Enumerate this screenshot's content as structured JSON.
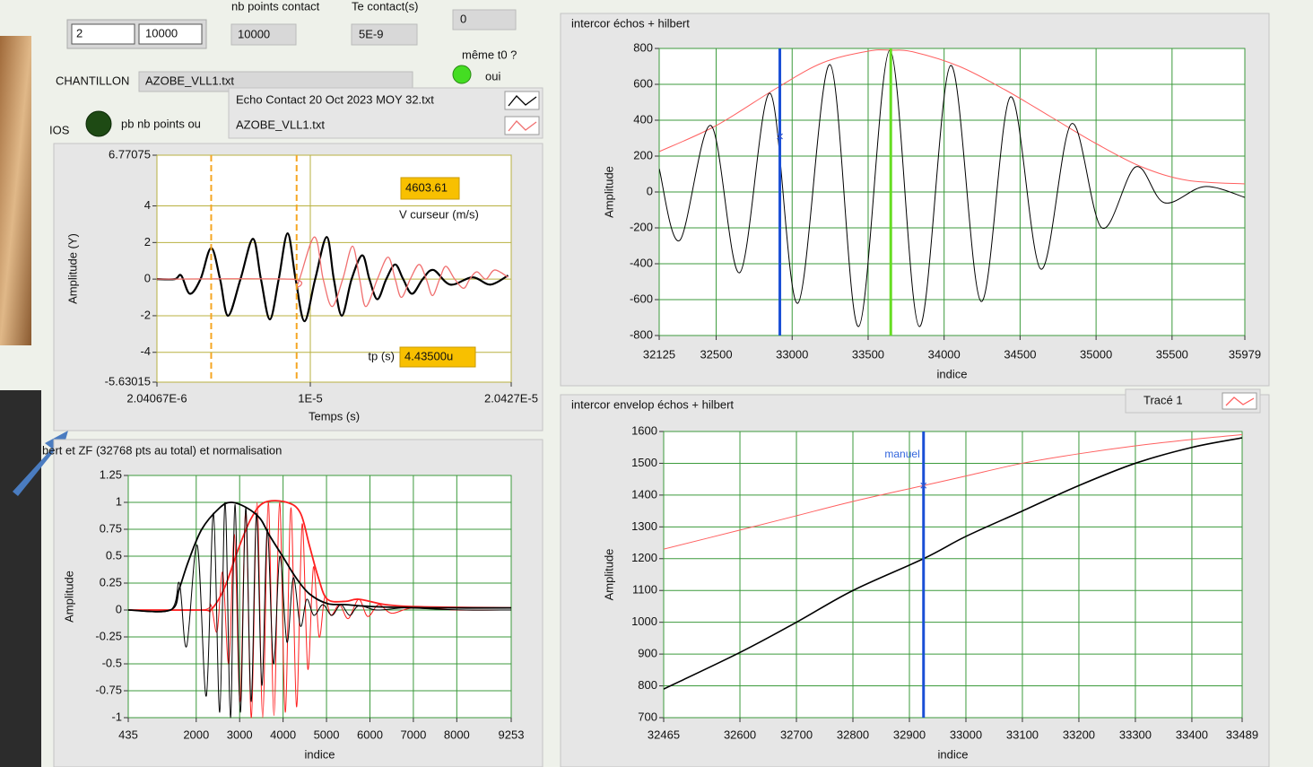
{
  "controls": {
    "top_labels": [
      "nb points contact",
      "Te contact(s)"
    ],
    "fields": [
      "2",
      "10000",
      "10000",
      "5E-9",
      "0"
    ],
    "same_t0_label": "même t0 ?",
    "same_t0_value": "oui",
    "sample_label": "CHANTILLON",
    "sample_file": "AZOBE_VLL1.txt",
    "echos_label": "IOS",
    "mismatch_label": "pb nb points ou"
  },
  "charts": [
    {
      "type": "line",
      "y_label": "Amplitude (Y)",
      "x_label": "Temps (s)",
      "grid_color": "#b8b040",
      "xlim": [
        2.04067e-06,
        2.0427e-05
      ],
      "ylim": [
        -5.63015,
        6.77075
      ],
      "xticks": [
        {
          "value": 2.04067e-06,
          "label": "2.04067E-6"
        },
        {
          "value": 1e-05,
          "label": "1E-5"
        },
        {
          "value": 2.0427e-05,
          "label": "2.0427E-5"
        }
      ],
      "yticks": [
        6.77075,
        4,
        2,
        0,
        -2,
        -4,
        -5.63015
      ],
      "series": [
        {
          "name": "Echo Contact 20 Oct 2023  MOY 32.txt",
          "color": "#000000",
          "width": 2.2,
          "x": [
            2.041e-06,
            2.964e-06,
            3.3e-06,
            3.748e-06,
            4.302e-06,
            4.855e-06,
            5.316e-06,
            5.731e-06,
            6.377e-06,
            7.023e-06,
            7.438e-06,
            7.9e-06,
            8.361e-06,
            8.822e-06,
            9.238e-06,
            9.699e-06,
            1.0253e-05,
            1.0852e-05,
            1.1221e-05,
            1.1636e-05,
            1.2144e-05,
            1.2698e-05,
            1.3067e-05,
            1.3482e-05,
            1.3943e-05,
            1.4405e-05,
            1.482e-05,
            1.5281e-05,
            1.5835e-05,
            1.6388e-05,
            1.7264e-05,
            1.8418e-05,
            1.9341e-05,
            2.0264e-05
          ],
          "values": [
            0,
            0,
            0.2,
            -0.8,
            0,
            1.7,
            0,
            -2.0,
            0,
            2.2,
            0,
            -2.2,
            0,
            2.5,
            0,
            -2.3,
            0,
            2.3,
            0,
            -2.0,
            0,
            1.3,
            0,
            -1.1,
            0,
            0.8,
            0,
            -0.8,
            0,
            0.5,
            -0.3,
            0.1,
            -0.3,
            0.2
          ]
        },
        {
          "name": "AZOBE_VLL1.txt",
          "color": "#f07070",
          "width": 1.3,
          "x": [
            2.041e-06,
            8.961e-06,
            9.33e-06,
            1.0206e-05,
            1.0668e-05,
            1.1129e-05,
            1.1683e-05,
            1.219e-05,
            1.2559e-05,
            1.2882e-05,
            1.3482e-05,
            1.4035e-05,
            1.4405e-05,
            1.4728e-05,
            1.5189e-05,
            1.565e-05,
            1.6019e-05,
            1.6342e-05,
            1.6711e-05,
            1.7034e-05,
            1.7495e-05,
            1.7956e-05,
            1.8279e-05,
            1.8649e-05,
            1.911e-05,
            1.9571e-05,
            2.0264e-05
          ],
          "values": [
            0,
            0,
            -0.3,
            2.3,
            0,
            -1.5,
            0,
            1.8,
            0,
            -1.5,
            0,
            1.2,
            0,
            -1.0,
            0,
            0.8,
            0,
            -0.9,
            0,
            0.7,
            0,
            -0.5,
            0,
            0.4,
            0,
            0.5,
            0.1
          ]
        }
      ],
      "cursors": [
        {
          "x": 4.855e-06,
          "color": "#f5a623",
          "dashed": true
        },
        {
          "x": 9.29e-06,
          "color": "#f5a623",
          "dashed": true
        }
      ],
      "indicators": [
        {
          "label": "V curseur (m/s)",
          "value": "4603.61"
        },
        {
          "label": "tp (s)",
          "value": "4.43500u"
        }
      ]
    },
    {
      "type": "line",
      "title": "bert et ZF (32768 pts au total) et normalisation",
      "y_label": "Amplitude",
      "x_label": "indice",
      "grid_color": "#3c9a3c",
      "xlim": [
        435,
        9253
      ],
      "ylim": [
        -1,
        1.25
      ],
      "xticks": [
        435,
        2000,
        3000,
        4000,
        5000,
        6000,
        7000,
        8000,
        9253
      ],
      "yticks": [
        1.25,
        1,
        0.75,
        0.5,
        0.25,
        0,
        -0.25,
        -0.5,
        -0.75,
        -1
      ],
      "series": [
        {
          "color": "#ff2020",
          "width": 1,
          "x": [
            435,
            2128,
            2335,
            2480,
            2610,
            2750,
            2880,
            3010,
            3140,
            3270,
            3400,
            3530,
            3660,
            3790,
            3920,
            4050,
            4180,
            4310,
            4440,
            4570,
            4700,
            4830,
            4960,
            5100,
            5300,
            5500,
            5742,
            5950,
            6200,
            6500,
            7000,
            8000,
            9253
          ],
          "values": [
            0,
            0,
            0.05,
            -0.2,
            0.35,
            -0.5,
            0.7,
            -0.85,
            0.9,
            -1.0,
            1.0,
            -1.0,
            1.0,
            -0.98,
            1.0,
            -0.95,
            0.95,
            -0.9,
            0.8,
            -0.55,
            0.4,
            -0.25,
            0.12,
            -0.05,
            0.05,
            -0.08,
            0.1,
            -0.06,
            0.05,
            -0.03,
            0.02,
            0,
            0
          ]
        },
        {
          "color": "#ff2020",
          "width": 1.8,
          "x": [
            435,
            2128,
            2335,
            2645,
            2954,
            3264,
            3574,
            4090,
            4400,
            4606,
            4813,
            5019,
            5432,
            5742,
            6362,
            7188,
            9253
          ],
          "values": [
            0,
            0,
            0,
            0.2,
            0.55,
            0.85,
            1.0,
            1.0,
            0.9,
            0.6,
            0.3,
            0.1,
            0.08,
            0.1,
            0.05,
            0.03,
            0.02
          ]
        },
        {
          "color": "#000000",
          "width": 1,
          "x": [
            435,
            1406,
            1612,
            1777,
            2025,
            2232,
            2397,
            2541,
            2665,
            2789,
            2892,
            3016,
            3140,
            3264,
            3388,
            3512,
            3636,
            3780,
            3925,
            4090,
            4235,
            4400,
            4544,
            4710,
            4916,
            5123,
            5329,
            5536,
            5742,
            6155,
            6775,
            7394,
            8220,
            9253
          ],
          "values": [
            0,
            0,
            0.25,
            -0.34,
            0.6,
            -0.8,
            0.9,
            -0.95,
            1.0,
            -1.0,
            0.98,
            -0.95,
            0.95,
            -0.85,
            0.9,
            -0.7,
            0.75,
            -0.5,
            0.5,
            -0.3,
            0.3,
            -0.15,
            0.1,
            -0.05,
            0.05,
            -0.05,
            0.05,
            -0.05,
            0.04,
            0,
            0.02,
            0.01,
            0,
            0
          ]
        },
        {
          "color": "#000000",
          "width": 1.8,
          "x": [
            435,
            1406,
            1612,
            1818,
            2128,
            2541,
            2810,
            3161,
            3471,
            3677,
            3987,
            4297,
            4606,
            5019,
            5432,
            6155,
            7394,
            9253
          ],
          "values": [
            0,
            0,
            0.2,
            0.45,
            0.75,
            0.95,
            1.0,
            0.95,
            0.85,
            0.7,
            0.5,
            0.3,
            0.15,
            0.06,
            0.05,
            0.03,
            0.02,
            0.02
          ]
        }
      ]
    },
    {
      "type": "line",
      "title": "intercor échos + hilbert",
      "y_label": "Amplitude",
      "x_label": "indice",
      "grid_color": "#3c9a3c",
      "xlim": [
        32125,
        35979
      ],
      "ylim": [
        -800,
        800
      ],
      "xticks": [
        32125,
        32500,
        33000,
        33500,
        34000,
        34500,
        35000,
        35500,
        35979
      ],
      "yticks": [
        800,
        600,
        400,
        200,
        0,
        -200,
        -400,
        -600,
        -800
      ],
      "series": [
        {
          "color": "#ff6060",
          "width": 1,
          "x": [
            32125,
            32500,
            32900,
            33200,
            33500,
            33650,
            33800,
            34100,
            34400,
            34700,
            35000,
            35300,
            35600,
            35979
          ],
          "values": [
            225,
            370,
            580,
            720,
            785,
            790,
            780,
            700,
            570,
            420,
            270,
            140,
            65,
            45
          ]
        },
        {
          "color": "#000000",
          "width": 1,
          "x": [
            32125,
            32260,
            32466,
            32655,
            32855,
            33037,
            33249,
            33437,
            33643,
            33837,
            34043,
            34243,
            34437,
            34637,
            34838,
            35038,
            35261,
            35449,
            35714,
            35979
          ],
          "values": [
            130,
            -270,
            370,
            -450,
            550,
            -620,
            710,
            -750,
            790,
            -750,
            705,
            -610,
            530,
            -430,
            380,
            -200,
            140,
            -60,
            30,
            -30
          ]
        }
      ],
      "cursors": [
        {
          "x": 32919,
          "color": "#1a4fd6",
          "marker_y": 310
        },
        {
          "x": 33649,
          "color": "#66dd22"
        }
      ]
    },
    {
      "type": "line",
      "title": "intercor  envelop échos + hilbert",
      "y_label": "Amplitude",
      "x_label": "indice",
      "grid_color": "#3c9a3c",
      "xlim": [
        32465,
        33489
      ],
      "ylim": [
        700,
        1600
      ],
      "xticks": [
        32465,
        32600,
        32700,
        32800,
        32900,
        33000,
        33100,
        33200,
        33300,
        33400,
        33489
      ],
      "yticks": [
        1600,
        1500,
        1400,
        1300,
        1200,
        1100,
        1000,
        900,
        800,
        700
      ],
      "series": [
        {
          "name": "Tracé 1",
          "color": "#ff6060",
          "width": 1,
          "x": [
            32465,
            32600,
            32700,
            32800,
            32925,
            33000,
            33100,
            33200,
            33300,
            33400,
            33489
          ],
          "values": [
            1230,
            1290,
            1335,
            1380,
            1430,
            1460,
            1500,
            1530,
            1555,
            1575,
            1590
          ]
        },
        {
          "color": "#000000",
          "width": 1.6,
          "x": [
            32465,
            32600,
            32700,
            32800,
            32925,
            33000,
            33100,
            33200,
            33300,
            33400,
            33489
          ],
          "values": [
            790,
            905,
            1000,
            1100,
            1200,
            1270,
            1350,
            1430,
            1500,
            1550,
            1580
          ]
        }
      ],
      "cursors": [
        {
          "x": 32925,
          "color": "#1a4fd6",
          "marker_y": 1430,
          "label": "manuel"
        }
      ]
    }
  ]
}
